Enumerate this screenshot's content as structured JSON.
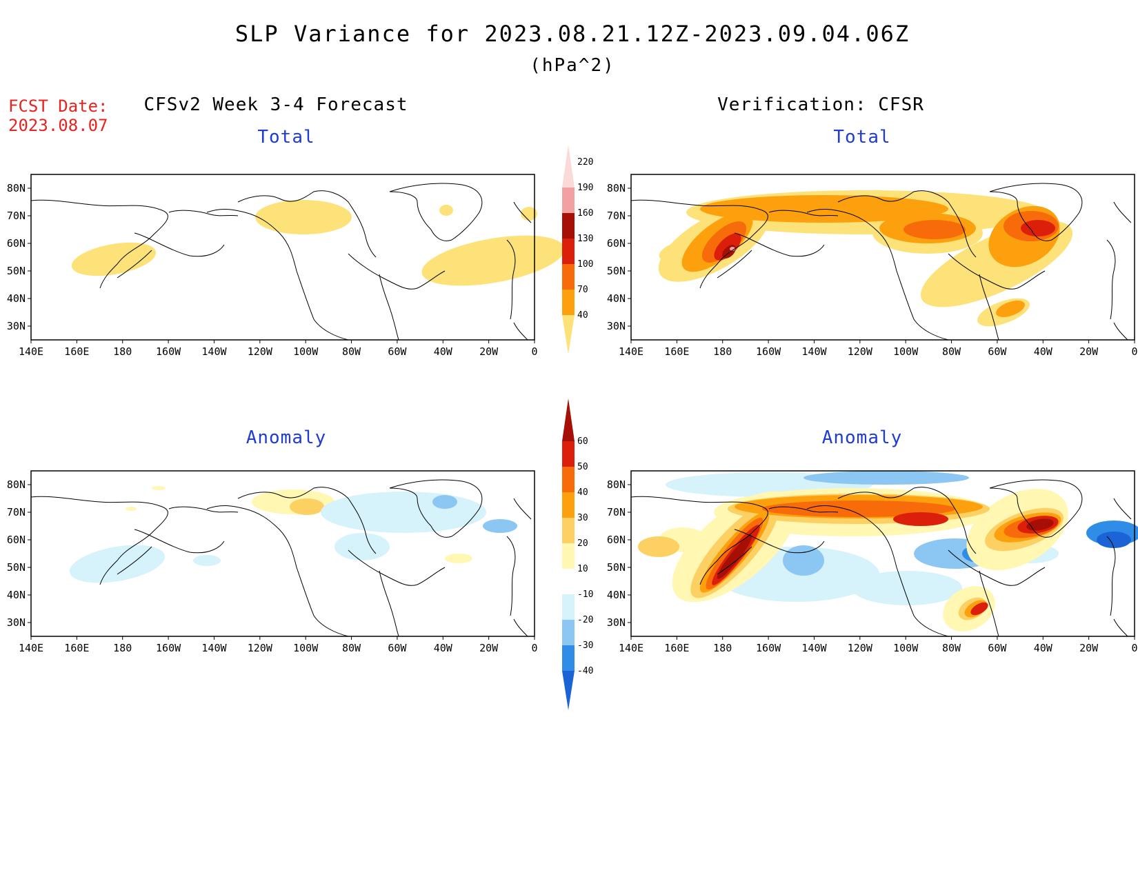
{
  "title": "SLP Variance for 2023.08.21.12Z-2023.09.04.06Z",
  "units": "(hPa^2)",
  "fcst_date": {
    "label": "FCST Date:",
    "value": "2023.08.07"
  },
  "left_header": "CFSv2 Week 3-4 Forecast",
  "right_header": "Verification: CFSR",
  "panels": {
    "fc_total": {
      "title": "Total"
    },
    "fc_anom": {
      "title": "Anomaly"
    },
    "ver_total": {
      "title": "Total"
    },
    "ver_anom": {
      "title": "Anomaly"
    }
  },
  "lon_labels": [
    "140E",
    "160E",
    "180",
    "160W",
    "140W",
    "120W",
    "100W",
    "80W",
    "60W",
    "40W",
    "20W",
    "0"
  ],
  "lat_labels": [
    "80N",
    "70N",
    "60N",
    "50N",
    "40N",
    "30N"
  ],
  "colorbar_total": {
    "levels": [
      "40",
      "70",
      "100",
      "130",
      "160",
      "190",
      "220"
    ],
    "colors": [
      "#fde27a",
      "#fca10d",
      "#f76b0b",
      "#dc1f0a",
      "#a50f06",
      "#f2a0a0",
      "#fbd9d9"
    ]
  },
  "colorbar_anom": {
    "levels": [
      "-40",
      "-30",
      "-20",
      "-10",
      "10",
      "20",
      "30",
      "40",
      "50",
      "60"
    ],
    "colors": [
      "#1c64d6",
      "#2f8de8",
      "#8cc6f2",
      "#d6f2fb",
      "#ffffff",
      "#fff7b2",
      "#fdd064",
      "#fca10d",
      "#f76b0b",
      "#dc1f0a",
      "#a50f06"
    ]
  },
  "colors": {
    "fcst_red": "#e8231f",
    "panel_title_blue": "#1f3bd6"
  }
}
